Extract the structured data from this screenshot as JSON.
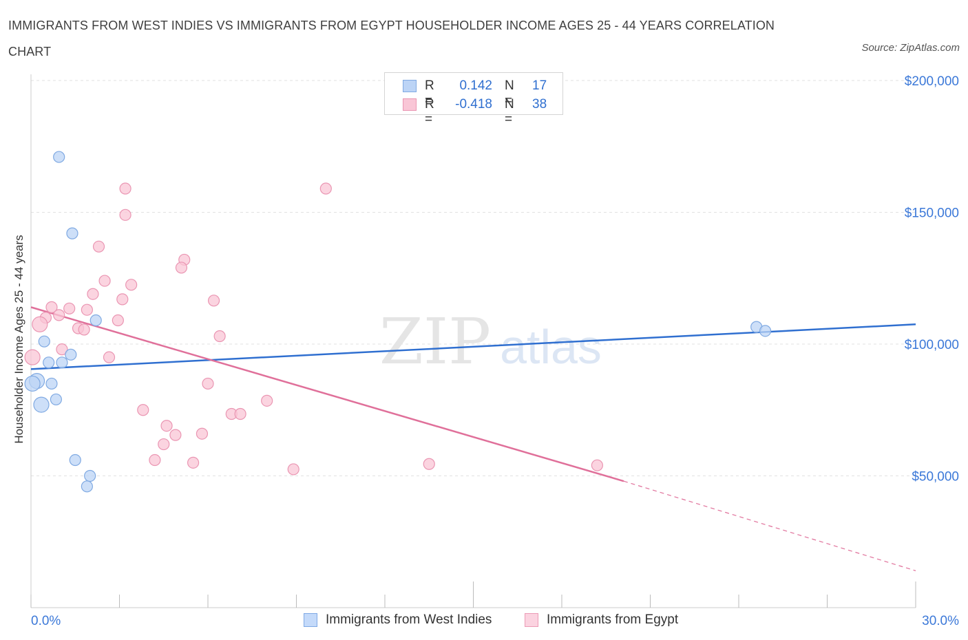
{
  "title": "IMMIGRANTS FROM WEST INDIES VS IMMIGRANTS FROM EGYPT HOUSEHOLDER INCOME AGES 25 - 44 YEARS CORRELATION CHART",
  "source": "Source: ZipAtlas.com",
  "watermark": {
    "zip": "ZIP",
    "atlas": "atlas"
  },
  "stats": [
    {
      "r_label": "R =",
      "r_value": "0.142",
      "n_label": "N =",
      "n_value": "17",
      "color": "#a9c8f4",
      "border": "#5b8fd6"
    },
    {
      "r_label": "R =",
      "r_value": "-0.418",
      "n_label": "N =",
      "n_value": "38",
      "color": "#f7bfd0",
      "border": "#e58aa6"
    }
  ],
  "legend": [
    {
      "label": "Immigrants from West Indies",
      "color": "#c4dafa",
      "border": "#7ea8e4"
    },
    {
      "label": "Immigrants from Egypt",
      "color": "#fbd3e0",
      "border": "#eb9ab5"
    }
  ],
  "colors": {
    "blue_point_fill": "#bcd4f6",
    "blue_point_stroke": "#7fa9e2",
    "blue_line": "#2f6fd0",
    "pink_point_fill": "#f9c6d6",
    "pink_point_stroke": "#ea95b2",
    "pink_line": "#e0709a",
    "tick_label": "#3b78d8",
    "grid": "#e1e1e1",
    "axis": "#cccccc"
  },
  "chart_data": {
    "type": "scatter",
    "title": "IMMIGRANTS FROM WEST INDIES VS IMMIGRANTS FROM EGYPT HOUSEHOLDER INCOME AGES 25 - 44 YEARS CORRELATION CHART",
    "xlabel": "",
    "ylabel": "Householder Income Ages 25 - 44 years",
    "xlim": [
      0,
      30
    ],
    "ylim": [
      0,
      200000
    ],
    "x_tick_labels": [
      "0.0%",
      "30.0%"
    ],
    "y_ticks": [
      {
        "value": 50000,
        "label": "$50,000"
      },
      {
        "value": 100000,
        "label": "$100,000"
      },
      {
        "value": 150000,
        "label": "$150,000"
      },
      {
        "value": 200000,
        "label": "$200,000"
      }
    ],
    "grid": true,
    "legend_position": "bottom-center",
    "series": [
      {
        "name": "Immigrants from West Indies",
        "points": [
          [
            0.95,
            171000
          ],
          [
            1.4,
            142000
          ],
          [
            2.2,
            109000
          ],
          [
            0.45,
            101000
          ],
          [
            1.35,
            96000
          ],
          [
            0.6,
            93000
          ],
          [
            1.05,
            93000
          ],
          [
            0.2,
            86000
          ],
          [
            0.05,
            85000
          ],
          [
            0.7,
            85000
          ],
          [
            0.85,
            79000
          ],
          [
            0.35,
            77000
          ],
          [
            1.5,
            56000
          ],
          [
            2.0,
            50000
          ],
          [
            1.9,
            46000
          ],
          [
            24.6,
            106500
          ],
          [
            24.9,
            105000
          ]
        ],
        "trend": {
          "x": [
            0,
            30
          ],
          "y": [
            90500,
            107500
          ]
        }
      },
      {
        "name": "Immigrants from Egypt",
        "points": [
          [
            3.2,
            159000
          ],
          [
            10.0,
            159000
          ],
          [
            3.2,
            149000
          ],
          [
            2.3,
            137000
          ],
          [
            5.2,
            132000
          ],
          [
            5.1,
            129000
          ],
          [
            2.5,
            124000
          ],
          [
            3.4,
            122500
          ],
          [
            2.1,
            119000
          ],
          [
            3.1,
            117000
          ],
          [
            6.2,
            116500
          ],
          [
            0.7,
            114000
          ],
          [
            1.3,
            113500
          ],
          [
            1.9,
            113000
          ],
          [
            0.95,
            111000
          ],
          [
            0.5,
            110000
          ],
          [
            2.95,
            109000
          ],
          [
            0.3,
            107500
          ],
          [
            1.6,
            106000
          ],
          [
            1.8,
            105500
          ],
          [
            6.4,
            103000
          ],
          [
            1.05,
            98000
          ],
          [
            2.65,
            95000
          ],
          [
            0.05,
            95000
          ],
          [
            6.0,
            85000
          ],
          [
            8.0,
            78500
          ],
          [
            3.8,
            75000
          ],
          [
            6.8,
            73500
          ],
          [
            7.1,
            73500
          ],
          [
            4.6,
            69000
          ],
          [
            4.9,
            65500
          ],
          [
            5.8,
            66000
          ],
          [
            4.5,
            62000
          ],
          [
            4.2,
            56000
          ],
          [
            5.5,
            55000
          ],
          [
            8.9,
            52500
          ],
          [
            13.5,
            54500
          ],
          [
            19.2,
            54000
          ]
        ],
        "trend": {
          "x": [
            0,
            20.1
          ],
          "y": [
            114000,
            48000
          ]
        },
        "trend_dashed": {
          "x": [
            20.1,
            30
          ],
          "y": [
            48000,
            14000
          ]
        }
      }
    ]
  }
}
